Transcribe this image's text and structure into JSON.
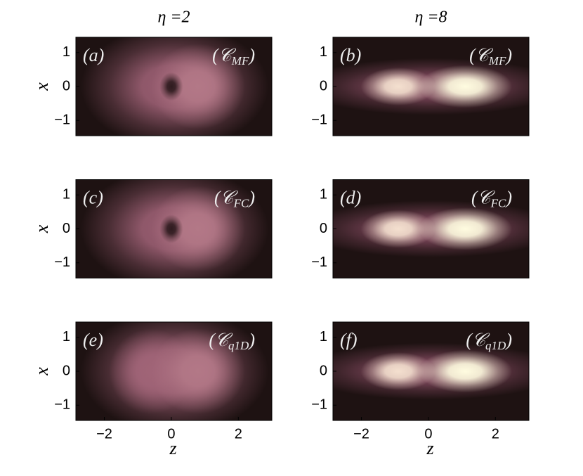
{
  "chart_data": [
    {
      "type": "heatmap",
      "title": "η =2",
      "label": "(a)",
      "method": [
        "(𝒞",
        "MF",
        ")"
      ],
      "ylabel": "x",
      "xlim": [
        -2.85,
        3
      ],
      "ylim": [
        -1.45,
        1.45
      ],
      "yticks": [
        1,
        0,
        {
          "value": -1,
          "label": "−1"
        }
      ],
      "colormap": [
        "#1e1212",
        "#8c4f66",
        "#d9a0a8",
        "#fffce0"
      ],
      "lobes": [
        {
          "z": 0.1,
          "x": 0,
          "amplitude": 0.4,
          "width_z": 2.0,
          "width_x": 1.3
        },
        {
          "z": 0.8,
          "x": 0,
          "amplitude": 0.5,
          "width_z": 1.0,
          "width_x": 0.9
        },
        {
          "z": 0,
          "x": 0,
          "amplitude": 0.05,
          "width_z": 0.25,
          "width_x": 0.3
        }
      ]
    },
    {
      "type": "heatmap",
      "title": "η =8",
      "label": "(b)",
      "method": [
        "(𝒞",
        "MF",
        ")"
      ],
      "xlim": [
        -2.85,
        3
      ],
      "ylim": [
        -1.45,
        1.45
      ],
      "yticks": [
        1,
        0,
        {
          "value": -1,
          "label": "−1"
        }
      ],
      "colormap": [
        "#1e1212",
        "#8c4f66",
        "#d9a0a8",
        "#fffce0"
      ],
      "lobes": [
        {
          "z": 0.1,
          "x": 0,
          "amplitude": 0.3,
          "width_z": 2.8,
          "width_x": 0.6
        },
        {
          "z": -0.9,
          "x": 0,
          "amplitude": 0.9,
          "width_z": 0.8,
          "width_x": 0.4
        },
        {
          "z": 1.1,
          "x": 0,
          "amplitude": 1.0,
          "width_z": 1.0,
          "width_x": 0.45
        }
      ]
    },
    {
      "type": "heatmap",
      "label": "(c)",
      "method": [
        "(𝒞",
        "FC",
        ")"
      ],
      "ylabel": "x",
      "xlim": [
        -2.85,
        3
      ],
      "ylim": [
        -1.45,
        1.45
      ],
      "yticks": [
        1,
        0,
        {
          "value": -1,
          "label": "−1"
        }
      ],
      "colormap": [
        "#1e1212",
        "#8c4f66",
        "#d9a0a8",
        "#fffce0"
      ],
      "lobes": [
        {
          "z": 0.1,
          "x": 0,
          "amplitude": 0.4,
          "width_z": 2.0,
          "width_x": 1.3
        },
        {
          "z": 0.8,
          "x": 0,
          "amplitude": 0.5,
          "width_z": 1.0,
          "width_x": 0.9
        },
        {
          "z": 0,
          "x": 0,
          "amplitude": 0.05,
          "width_z": 0.25,
          "width_x": 0.3
        }
      ]
    },
    {
      "type": "heatmap",
      "label": "(d)",
      "method": [
        "(𝒞",
        "FC",
        ")"
      ],
      "xlim": [
        -2.85,
        3
      ],
      "ylim": [
        -1.45,
        1.45
      ],
      "yticks": [
        1,
        0,
        {
          "value": -1,
          "label": "−1"
        }
      ],
      "colormap": [
        "#1e1212",
        "#8c4f66",
        "#d9a0a8",
        "#fffce0"
      ],
      "lobes": [
        {
          "z": 0.1,
          "x": 0,
          "amplitude": 0.3,
          "width_z": 2.8,
          "width_x": 0.6
        },
        {
          "z": -0.9,
          "x": 0,
          "amplitude": 0.9,
          "width_z": 0.8,
          "width_x": 0.4
        },
        {
          "z": 1.1,
          "x": 0,
          "amplitude": 1.0,
          "width_z": 1.0,
          "width_x": 0.45
        }
      ]
    },
    {
      "type": "heatmap",
      "label": "(e)",
      "method": [
        "(𝒞",
        "q1D",
        ")"
      ],
      "ylabel": "x",
      "xlabel": "z",
      "xlim": [
        -2.85,
        3
      ],
      "ylim": [
        -1.45,
        1.45
      ],
      "yticks": [
        1,
        0,
        {
          "value": -1,
          "label": "−1"
        }
      ],
      "xticks": [
        {
          "value": -2,
          "label": "−2"
        },
        0,
        2
      ],
      "colormap": [
        "#1e1212",
        "#8c4f66",
        "#d9a0a8",
        "#fffce0"
      ],
      "lobes": [
        {
          "z": 0.1,
          "x": 0,
          "amplitude": 0.4,
          "width_z": 2.0,
          "width_x": 1.3
        },
        {
          "z": -0.6,
          "x": 0,
          "amplitude": 0.42,
          "width_z": 0.9,
          "width_x": 0.9
        },
        {
          "z": 0.8,
          "x": 0,
          "amplitude": 0.5,
          "width_z": 1.0,
          "width_x": 0.9
        }
      ]
    },
    {
      "type": "heatmap",
      "label": "(f)",
      "method": [
        "(𝒞",
        "q1D",
        ")"
      ],
      "xlabel": "z",
      "xlim": [
        -2.85,
        3
      ],
      "ylim": [
        -1.45,
        1.45
      ],
      "yticks": [
        1,
        0,
        {
          "value": -1,
          "label": "−1"
        }
      ],
      "xticks": [
        {
          "value": -2,
          "label": "−2"
        },
        0,
        2
      ],
      "colormap": [
        "#1e1212",
        "#8c4f66",
        "#d9a0a8",
        "#fffce0"
      ],
      "lobes": [
        {
          "z": 0.1,
          "x": 0,
          "amplitude": 0.3,
          "width_z": 2.8,
          "width_x": 0.6
        },
        {
          "z": -0.9,
          "x": 0,
          "amplitude": 0.9,
          "width_z": 0.8,
          "width_x": 0.4
        },
        {
          "z": 1.1,
          "x": 0,
          "amplitude": 1.0,
          "width_z": 1.0,
          "width_x": 0.45
        }
      ]
    }
  ]
}
